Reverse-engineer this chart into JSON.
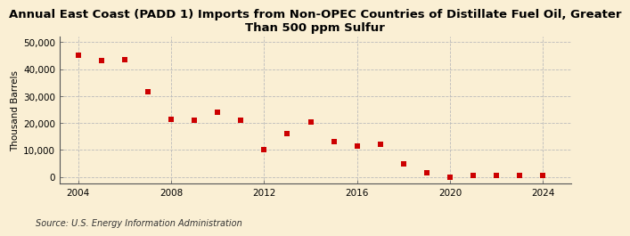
{
  "title": "Annual East Coast (PADD 1) Imports from Non-OPEC Countries of Distillate Fuel Oil, Greater\nThan 500 ppm Sulfur",
  "ylabel": "Thousand Barrels",
  "source": "Source: U.S. Energy Information Administration",
  "background_color": "#faefd4",
  "plot_bg_color": "#faefd4",
  "marker_color": "#cc0000",
  "years": [
    2004,
    2005,
    2006,
    2007,
    2008,
    2009,
    2010,
    2011,
    2012,
    2013,
    2014,
    2015,
    2016,
    2017,
    2018,
    2019,
    2020,
    2021,
    2022,
    2023,
    2024
  ],
  "values": [
    45200,
    43000,
    43500,
    31500,
    21500,
    21000,
    24000,
    21000,
    10000,
    16000,
    20500,
    13000,
    11500,
    12000,
    5000,
    1500,
    -200,
    500,
    500,
    500,
    500
  ],
  "ylim": [
    -2500,
    52000
  ],
  "xlim": [
    2003.2,
    2025.2
  ],
  "yticks": [
    0,
    10000,
    20000,
    30000,
    40000,
    50000
  ],
  "xticks": [
    2004,
    2008,
    2012,
    2016,
    2020,
    2024
  ],
  "title_fontsize": 9.5,
  "ylabel_fontsize": 7.5,
  "tick_fontsize": 7.5,
  "source_fontsize": 7
}
